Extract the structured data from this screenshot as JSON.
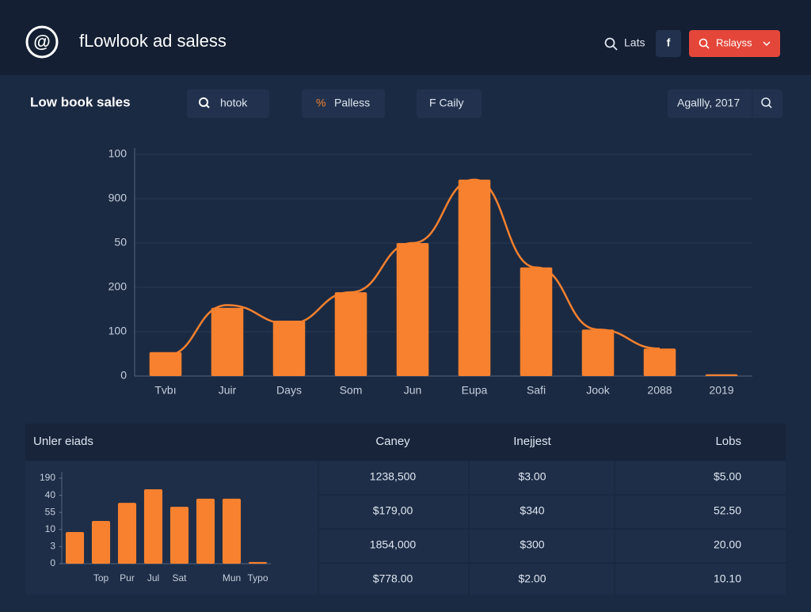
{
  "header": {
    "logo": "@",
    "title": "fLowlook ad saless",
    "search": "Lats",
    "social": "f",
    "button": "Rslayss"
  },
  "toolbar": {
    "title": "Low book sales",
    "search": "hotok",
    "filter_icon": "%",
    "filter": "Palless",
    "period": "F Caily",
    "date": "Agallly, 2017"
  },
  "main_chart": {
    "type": "bar",
    "color": "#f7812e",
    "categories": [
      "Tvbı",
      "Juir",
      "Days",
      "Som",
      "Jun",
      "Eupa",
      "Safi",
      "Jook",
      "2088",
      "2019"
    ],
    "values": [
      54,
      154,
      125,
      189,
      300,
      443,
      245,
      105,
      62,
      4
    ],
    "line": [
      46,
      160,
      118,
      189,
      300,
      443,
      245,
      105,
      62,
      null
    ],
    "ylim": [
      0,
      500
    ],
    "yticks": [
      0,
      100,
      200,
      {
        "value": 300,
        "label": "50"
      },
      {
        "value": 400,
        "label": "900"
      },
      {
        "value": 500,
        "label": "100"
      }
    ],
    "grid": true
  },
  "panel": {
    "title": "Unler eiads",
    "chart": {
      "type": "bar",
      "color": "#f7812e",
      "categories": [
        null,
        "Top",
        "Pur",
        "Jul",
        "Sat",
        null,
        "Mun",
        "Typo"
      ],
      "values": [
        1.85,
        2.5,
        3.56,
        4.35,
        3.33,
        3.8,
        3.8,
        0.1
      ],
      "ylim": [
        0,
        5
      ],
      "yticks": [
        0,
        {
          "value": 1,
          "label": "3"
        },
        {
          "value": 2,
          "label": "10"
        },
        {
          "value": 3,
          "label": "55"
        },
        {
          "value": 4,
          "label": "40"
        },
        {
          "value": 5,
          "label": "190"
        }
      ],
      "grid": false
    },
    "table": {
      "columns": [
        "Caney",
        "Inejjest",
        "Lobs"
      ],
      "rows": [
        [
          "1238,500",
          "$3.00",
          "$5.00"
        ],
        [
          "$179,00",
          "$340",
          "52.50"
        ],
        [
          "1854,000",
          "$300",
          "20.00"
        ],
        [
          "$778.00",
          "$2.00",
          "10.10"
        ]
      ]
    }
  }
}
